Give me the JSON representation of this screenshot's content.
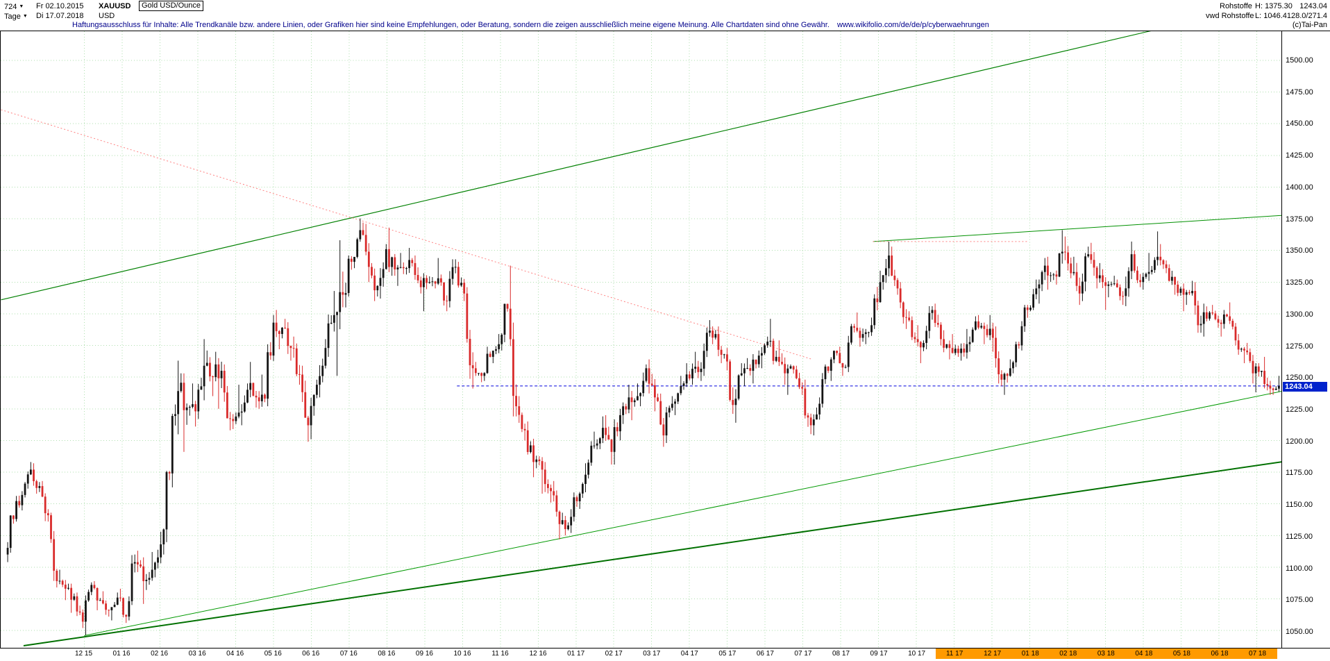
{
  "header": {
    "bars_count": "724",
    "caret": "▼",
    "range_start": "Fr 02.10.2015",
    "symbol": "XAUUSD",
    "instrument": "Gold USD/Ounce",
    "timeframe": "Tage",
    "range_end": "Di 17.07.2018",
    "currency": "USD",
    "category": "Rohstoffe",
    "data_feed": "vwd Rohstoffe",
    "high_label": "H:",
    "high_value": "1375.30",
    "low_label": "L:",
    "low_value": "1046.41",
    "last_price": "1243.04",
    "extra_values": "28.0/271.4",
    "copyright": "(c)Tai-Pan",
    "disclaimer": "Haftungsausschluss für Inhalte: Alle Trendkanäle bzw. andere Linien, oder Grafiken hier sind keine Empfehlungen, oder Beratung, sondern die zeigen ausschließlich meine eigene Meinung. Alle Chartdaten sind ohne Gewähr.",
    "url": "www.wikifolio.com/de/de/p/cyberwaehrungen"
  },
  "chart_data": {
    "type": "candlestick",
    "title": "XAUUSD Gold USD/Ounce, Tage (daily candles), Fr 02.10.2015 - Di 17.07.2018",
    "instrument": "XAUUSD Gold USD/Ounce",
    "timeframe": "Tage",
    "first_date": "02.10.2015",
    "last_date": "17.07.2018",
    "period_high": 1375.3,
    "period_low": 1046.41,
    "last_price": 1243.04,
    "first_open": 1110,
    "background": "#ffffff",
    "grid": {
      "h_step_usd": 25,
      "v_step": "monthly",
      "color": "#aedfae",
      "style": "dotted"
    },
    "candle_colors": {
      "up": "#141414",
      "down": "#d92b2b"
    },
    "y_axis": {
      "ticks": [
        "1500.00",
        "1475.00",
        "1450.00",
        "1425.00",
        "1400.00",
        "1375.00",
        "1350.00",
        "1325.00",
        "1300.00",
        "1275.00",
        "1250.00",
        "1225.00",
        "1200.00",
        "1175.00",
        "1150.00",
        "1125.00",
        "1100.00",
        "1075.00",
        "1050.00"
      ],
      "badge": "1243.04",
      "ylim": [
        1036,
        1523
      ]
    },
    "x_axis": {
      "labels": [
        "12 15",
        "01 16",
        "02 16",
        "03 16",
        "04 16",
        "05 16",
        "06 16",
        "07 16",
        "08 16",
        "09 16",
        "10 16",
        "11 16",
        "12 16",
        "01 17",
        "02 17",
        "03 17",
        "04 17",
        "05 17",
        "06 17",
        "07 17",
        "08 17",
        "09 17",
        "10 17",
        "11 17",
        "12 17",
        "01 18",
        "02 18",
        "03 18",
        "04 18",
        "05 18",
        "06 18",
        "07 18"
      ],
      "highlight_from": "11 17",
      "highlight_color": "#ff9a00"
    },
    "weekly_hlc_note": "weekly [high, low, close] read off chart, open = previous close, starting at first_open",
    "weekly_hlc": [
      [
        1141,
        1104,
        1138
      ],
      [
        1160,
        1136,
        1157
      ],
      [
        1183,
        1155,
        1177
      ],
      [
        1182,
        1158,
        1164
      ],
      [
        1168,
        1136,
        1141
      ],
      [
        1143,
        1084,
        1089
      ],
      [
        1098,
        1074,
        1083
      ],
      [
        1087,
        1064,
        1077
      ],
      [
        1080,
        1052,
        1057
      ],
      [
        1088,
        1046.41,
        1086
      ],
      [
        1089,
        1066,
        1074
      ],
      [
        1081,
        1061,
        1066
      ],
      [
        1080,
        1058,
        1076
      ],
      [
        1083,
        1056,
        1061
      ],
      [
        1110,
        1058,
        1104
      ],
      [
        1113,
        1071,
        1089
      ],
      [
        1112,
        1082,
        1098
      ],
      [
        1128,
        1092,
        1118
      ],
      [
        1176,
        1110,
        1174
      ],
      [
        1263,
        1163,
        1239
      ],
      [
        1253,
        1191,
        1226
      ],
      [
        1245,
        1211,
        1223
      ],
      [
        1280,
        1217,
        1259
      ],
      [
        1271,
        1235,
        1250
      ],
      [
        1270,
        1225,
        1255
      ],
      [
        1260,
        1208,
        1217
      ],
      [
        1244,
        1209,
        1222
      ],
      [
        1245,
        1212,
        1240
      ],
      [
        1262,
        1226,
        1234
      ],
      [
        1252,
        1225,
        1233
      ],
      [
        1299,
        1227,
        1293
      ],
      [
        1303,
        1272,
        1289
      ],
      [
        1296,
        1263,
        1273
      ],
      [
        1282,
        1244,
        1252
      ],
      [
        1259,
        1199,
        1212
      ],
      [
        1248,
        1201,
        1244
      ],
      [
        1280,
        1234,
        1273
      ],
      [
        1318,
        1266,
        1299
      ],
      [
        1358,
        1251,
        1315
      ],
      [
        1346,
        1305,
        1341
      ],
      [
        1375.3,
        1336,
        1366
      ],
      [
        1372,
        1325,
        1337
      ],
      [
        1340,
        1310,
        1322
      ],
      [
        1355,
        1312,
        1351
      ],
      [
        1368,
        1330,
        1335
      ],
      [
        1348,
        1322,
        1336
      ],
      [
        1352,
        1331,
        1340
      ],
      [
        1346,
        1316,
        1321
      ],
      [
        1332,
        1302,
        1325
      ],
      [
        1344,
        1320,
        1328
      ],
      [
        1331,
        1302,
        1310
      ],
      [
        1343,
        1305,
        1337
      ],
      [
        1341,
        1310,
        1316
      ],
      [
        1321,
        1241,
        1257
      ],
      [
        1262,
        1246,
        1251
      ],
      [
        1274,
        1247,
        1266
      ],
      [
        1284,
        1261,
        1276
      ],
      [
        1308,
        1271,
        1304
      ],
      [
        1338,
        1219,
        1227
      ],
      [
        1235,
        1200,
        1208
      ],
      [
        1215,
        1171,
        1183
      ],
      [
        1188,
        1158,
        1177
      ],
      [
        1183,
        1151,
        1160
      ],
      [
        1168,
        1122,
        1134
      ],
      [
        1143,
        1125,
        1133
      ],
      [
        1159,
        1127,
        1152
      ],
      [
        1182,
        1146,
        1173
      ],
      [
        1207,
        1170,
        1196
      ],
      [
        1219,
        1193,
        1210
      ],
      [
        1220,
        1181,
        1191
      ],
      [
        1225,
        1181,
        1220
      ],
      [
        1244,
        1213,
        1234
      ],
      [
        1245,
        1216,
        1235
      ],
      [
        1260,
        1227,
        1257
      ],
      [
        1264,
        1223,
        1234
      ],
      [
        1237,
        1195,
        1204
      ],
      [
        1235,
        1198,
        1229
      ],
      [
        1251,
        1220,
        1243
      ],
      [
        1261,
        1240,
        1249
      ],
      [
        1270,
        1244,
        1254
      ],
      [
        1289,
        1247,
        1285
      ],
      [
        1295,
        1276,
        1284
      ],
      [
        1290,
        1261,
        1268
      ],
      [
        1273,
        1221,
        1228
      ],
      [
        1261,
        1214,
        1253
      ],
      [
        1265,
        1243,
        1255
      ],
      [
        1271,
        1245,
        1267
      ],
      [
        1282,
        1257,
        1278
      ],
      [
        1296,
        1260,
        1266
      ],
      [
        1279,
        1244,
        1253
      ],
      [
        1260,
        1236,
        1256
      ],
      [
        1259,
        1236,
        1241
      ],
      [
        1248,
        1205,
        1212
      ],
      [
        1234,
        1204,
        1229
      ],
      [
        1260,
        1226,
        1255
      ],
      [
        1271,
        1247,
        1269
      ],
      [
        1274,
        1251,
        1258
      ],
      [
        1292,
        1254,
        1289
      ],
      [
        1301,
        1274,
        1284
      ],
      [
        1297,
        1276,
        1291
      ],
      [
        1334,
        1288,
        1325
      ],
      [
        1357,
        1319,
        1346
      ],
      [
        1353,
        1315,
        1320
      ],
      [
        1325,
        1288,
        1297
      ],
      [
        1302,
        1277,
        1280
      ],
      [
        1291,
        1261,
        1277
      ],
      [
        1306,
        1272,
        1303
      ],
      [
        1308,
        1275,
        1280
      ],
      [
        1287,
        1264,
        1273
      ],
      [
        1284,
        1266,
        1269
      ],
      [
        1288,
        1263,
        1276
      ],
      [
        1298,
        1270,
        1294
      ],
      [
        1299,
        1276,
        1288
      ],
      [
        1299,
        1270,
        1281
      ],
      [
        1290,
        1243,
        1248
      ],
      [
        1264,
        1236,
        1257
      ],
      [
        1278,
        1253,
        1275
      ],
      [
        1307,
        1271,
        1303
      ],
      [
        1327,
        1302,
        1320
      ],
      [
        1344,
        1308,
        1338
      ],
      [
        1345,
        1319,
        1331
      ],
      [
        1366,
        1323,
        1349
      ],
      [
        1361,
        1328,
        1332
      ],
      [
        1345,
        1307,
        1316
      ],
      [
        1353,
        1310,
        1347
      ],
      [
        1356,
        1320,
        1328
      ],
      [
        1340,
        1303,
        1322
      ],
      [
        1330,
        1313,
        1324
      ],
      [
        1327,
        1307,
        1314
      ],
      [
        1357,
        1306,
        1347
      ],
      [
        1350,
        1321,
        1325
      ],
      [
        1348,
        1319,
        1333
      ],
      [
        1365,
        1331,
        1345
      ],
      [
        1355,
        1332,
        1336
      ],
      [
        1339,
        1315,
        1323
      ],
      [
        1326,
        1302,
        1315
      ],
      [
        1326,
        1307,
        1318
      ],
      [
        1325,
        1285,
        1292
      ],
      [
        1308,
        1282,
        1301
      ],
      [
        1307,
        1289,
        1293
      ],
      [
        1303,
        1282,
        1298
      ],
      [
        1309,
        1275,
        1279
      ],
      [
        1284,
        1261,
        1271
      ],
      [
        1277,
        1245,
        1253
      ],
      [
        1261,
        1238,
        1255
      ],
      [
        1266,
        1236,
        1241
      ],
      [
        1251,
        1236,
        1243.04
      ]
    ],
    "overlays": [
      {
        "name": "long-term-support-trendline",
        "style": "solid",
        "width": 2,
        "color": "#007000",
        "from": {
          "week": 2,
          "price": 1038
        },
        "to": {
          "week": 148,
          "price": 1184
        }
      },
      {
        "name": "secondary-support-trendline",
        "style": "solid",
        "width": 1,
        "color": "#009900",
        "from": {
          "week": 9,
          "price": 1046
        },
        "to": {
          "week": 148,
          "price": 1240
        }
      },
      {
        "name": "ascending-channel-resistance-trendline",
        "style": "solid",
        "width": 1.2,
        "color": "#008000",
        "from": {
          "week": -0.6,
          "price": 1311
        },
        "to": {
          "week": 140,
          "price": 1536
        }
      },
      {
        "name": "minor-resistance-trendline",
        "style": "solid",
        "width": 1,
        "color": "#009000",
        "from": {
          "week": 100,
          "price": 1357
        },
        "to": {
          "week": 148,
          "price": 1378
        }
      },
      {
        "name": "descending-resistance-trendline",
        "style": "dotted",
        "width": 1,
        "color": "#ff8080",
        "from": {
          "week": -0.6,
          "price": 1461
        },
        "to": {
          "week": 93,
          "price": 1264
        }
      },
      {
        "name": "horizontal-resistance-segment",
        "style": "dotted",
        "width": 1,
        "color": "#ff8080",
        "from": {
          "week": 100,
          "price": 1357
        },
        "to": {
          "week": 118,
          "price": 1357
        }
      },
      {
        "name": "last-price-horizontal-line",
        "style": "dashed",
        "width": 1,
        "color": "#0000dd",
        "from": {
          "week": 52,
          "price": 1243.04
        },
        "to": {
          "week": 148,
          "price": 1243.04
        }
      }
    ]
  }
}
